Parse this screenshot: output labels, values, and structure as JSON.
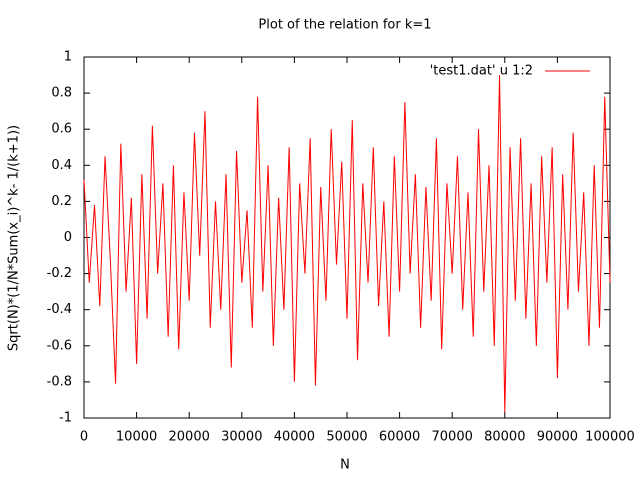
{
  "chart_data": {
    "type": "line",
    "title": "Plot of the relation for k=1",
    "x_label": "N",
    "y_label": "Sqrt(N)*(1/N*Sum(x_i)^k- 1/(k+1))",
    "x": [
      0,
      1000,
      2000,
      3000,
      4000,
      5000,
      6000,
      7000,
      8000,
      9000,
      10000,
      11000,
      12000,
      13000,
      14000,
      15000,
      16000,
      17000,
      18000,
      19000,
      20000,
      21000,
      22000,
      23000,
      24000,
      25000,
      26000,
      27000,
      28000,
      29000,
      30000,
      31000,
      32000,
      33000,
      34000,
      35000,
      36000,
      37000,
      38000,
      39000,
      40000,
      41000,
      42000,
      43000,
      44000,
      45000,
      46000,
      47000,
      48000,
      49000,
      50000,
      51000,
      52000,
      53000,
      54000,
      55000,
      56000,
      57000,
      58000,
      59000,
      60000,
      61000,
      62000,
      63000,
      64000,
      65000,
      66000,
      67000,
      68000,
      69000,
      70000,
      71000,
      72000,
      73000,
      74000,
      75000,
      76000,
      77000,
      78000,
      79000,
      80000,
      81000,
      82000,
      83000,
      84000,
      85000,
      86000,
      87000,
      88000,
      89000,
      90000,
      91000,
      92000,
      93000,
      94000,
      95000,
      96000,
      97000,
      98000,
      99000,
      100000
    ],
    "series": [
      {
        "name": "'test1.dat' u 1:2",
        "color": "#ff0000",
        "values": [
          0.32,
          -0.25,
          0.18,
          -0.38,
          0.45,
          -0.12,
          -0.81,
          0.52,
          -0.3,
          0.22,
          -0.7,
          0.35,
          -0.45,
          0.62,
          -0.2,
          0.3,
          -0.55,
          0.4,
          -0.62,
          0.25,
          -0.35,
          0.58,
          -0.1,
          0.7,
          -0.5,
          0.2,
          -0.4,
          0.35,
          -0.72,
          0.48,
          -0.25,
          0.15,
          -0.5,
          0.78,
          -0.3,
          0.4,
          -0.6,
          0.22,
          -0.4,
          0.5,
          -0.8,
          0.3,
          -0.2,
          0.55,
          -0.82,
          0.28,
          -0.35,
          0.6,
          -0.15,
          0.42,
          -0.45,
          0.65,
          -0.68,
          0.3,
          -0.25,
          0.5,
          -0.38,
          0.2,
          -0.55,
          0.45,
          -0.3,
          0.75,
          -0.2,
          0.35,
          -0.5,
          0.28,
          -0.35,
          0.55,
          -0.62,
          0.3,
          -0.2,
          0.45,
          -0.4,
          0.25,
          -0.55,
          0.6,
          -0.3,
          0.4,
          -0.6,
          0.9,
          -0.97,
          0.5,
          -0.35,
          0.55,
          -0.45,
          0.3,
          -0.6,
          0.45,
          -0.25,
          0.5,
          -0.78,
          0.35,
          -0.4,
          0.58,
          -0.3,
          0.25,
          -0.6,
          0.4,
          -0.5,
          0.78,
          -0.25
        ]
      }
    ],
    "xlim": [
      0,
      100000
    ],
    "xticks": [
      0,
      10000,
      20000,
      30000,
      40000,
      50000,
      60000,
      70000,
      80000,
      90000,
      100000
    ],
    "ylim": [
      -1,
      1
    ],
    "yticks": [
      -1,
      -0.8,
      -0.6,
      -0.4,
      -0.2,
      0,
      0.2,
      0.4,
      0.6,
      0.8,
      1
    ],
    "grid": false,
    "legend": "top-right"
  }
}
